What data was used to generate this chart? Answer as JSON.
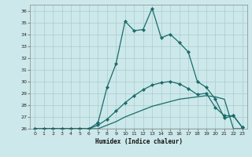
{
  "xlabel": "Humidex (Indice chaleur)",
  "ylabel": "",
  "background_color": "#cce8ea",
  "grid_color": "#aacccc",
  "line_color": "#1a6b6b",
  "xlim": [
    -0.5,
    23.5
  ],
  "ylim": [
    26,
    36.5
  ],
  "yticks": [
    26,
    27,
    28,
    29,
    30,
    31,
    32,
    33,
    34,
    35,
    36
  ],
  "xticks": [
    0,
    1,
    2,
    3,
    4,
    5,
    6,
    7,
    8,
    9,
    10,
    11,
    12,
    13,
    14,
    15,
    16,
    17,
    18,
    19,
    20,
    21,
    22,
    23
  ],
  "lines": [
    {
      "x": [
        0,
        1,
        2,
        3,
        4,
        5,
        6,
        7,
        8,
        9,
        10,
        11,
        12,
        13,
        14,
        15,
        16,
        17,
        18,
        19,
        20,
        21,
        22,
        23
      ],
      "y": [
        26,
        26,
        26,
        26,
        26,
        26,
        26,
        26,
        26,
        26,
        26,
        26,
        26,
        26,
        26,
        26,
        26,
        26,
        26,
        26,
        26,
        26,
        26,
        26
      ],
      "marker": false
    },
    {
      "x": [
        0,
        1,
        2,
        3,
        4,
        5,
        6,
        7,
        8,
        9,
        10,
        11,
        12,
        13,
        14,
        15,
        16,
        17,
        18,
        19,
        20,
        21,
        22,
        23
      ],
      "y": [
        26,
        26,
        26,
        26,
        26,
        26,
        26,
        26,
        26.3,
        26.6,
        27.0,
        27.3,
        27.6,
        27.9,
        28.1,
        28.3,
        28.5,
        28.6,
        28.7,
        28.8,
        28.7,
        28.5,
        26,
        26
      ],
      "marker": false
    },
    {
      "x": [
        0,
        1,
        2,
        3,
        4,
        5,
        6,
        7,
        8,
        9,
        10,
        11,
        12,
        13,
        14,
        15,
        16,
        17,
        18,
        19,
        20,
        21,
        22,
        23
      ],
      "y": [
        26,
        26,
        26,
        26,
        26,
        26,
        26.0,
        26.3,
        26.8,
        27.5,
        28.2,
        28.8,
        29.3,
        29.7,
        29.9,
        30.0,
        29.8,
        29.4,
        28.9,
        29.0,
        27.8,
        27.1,
        27.1,
        26.1
      ],
      "marker": true
    },
    {
      "x": [
        0,
        1,
        2,
        3,
        4,
        5,
        6,
        7,
        8,
        9,
        10,
        11,
        12,
        13,
        14,
        15,
        16,
        17,
        18,
        19,
        20,
        21,
        22,
        23
      ],
      "y": [
        26,
        26,
        26,
        26,
        26,
        26,
        26,
        26.5,
        29.5,
        31.5,
        35.1,
        34.3,
        34.4,
        36.2,
        33.7,
        34.0,
        33.3,
        32.5,
        30.0,
        29.5,
        28.5,
        26.9,
        27.1,
        26.1
      ],
      "marker": true
    }
  ]
}
